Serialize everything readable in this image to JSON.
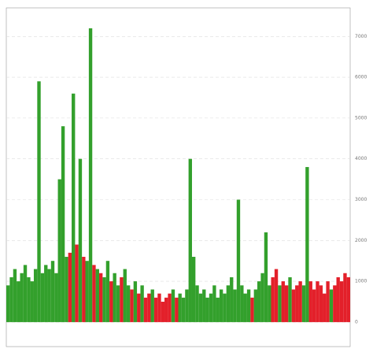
{
  "chart_data": {
    "type": "bar",
    "values": [
      900,
      1100,
      1300,
      1000,
      1200,
      1400,
      1100,
      1000,
      1300,
      5900,
      1200,
      1400,
      1300,
      1500,
      1200,
      3500,
      4800,
      1600,
      1700,
      5600,
      1900,
      4000,
      1600,
      1500,
      7200,
      1400,
      1300,
      1200,
      1100,
      1500,
      1000,
      1200,
      900,
      1100,
      1300,
      900,
      800,
      1000,
      700,
      900,
      600,
      700,
      800,
      600,
      700,
      500,
      600,
      700,
      800,
      600,
      700,
      600,
      800,
      4000,
      1600,
      900,
      700,
      800,
      600,
      700,
      900,
      600,
      800,
      700,
      900,
      1100,
      800,
      3000,
      900,
      700,
      800,
      600,
      800,
      1000,
      1200,
      2200,
      900,
      1100,
      1300,
      900,
      1000,
      900,
      1100,
      800,
      900,
      1000,
      900,
      3800,
      1000,
      800,
      1000,
      900,
      700,
      1000,
      800,
      900,
      1100,
      1000,
      1200,
      1100
    ],
    "colors": [
      "#33a02c",
      "#33a02c",
      "#33a02c",
      "#33a02c",
      "#33a02c",
      "#33a02c",
      "#33a02c",
      "#33a02c",
      "#33a02c",
      "#33a02c",
      "#33a02c",
      "#33a02c",
      "#33a02c",
      "#33a02c",
      "#33a02c",
      "#33a02c",
      "#33a02c",
      "#33a02c",
      "#e3202a",
      "#33a02c",
      "#e3202a",
      "#33a02c",
      "#e3202a",
      "#33a02c",
      "#33a02c",
      "#e3202a",
      "#33a02c",
      "#e3202a",
      "#33a02c",
      "#33a02c",
      "#e3202a",
      "#33a02c",
      "#33a02c",
      "#e3202a",
      "#33a02c",
      "#33a02c",
      "#e3202a",
      "#33a02c",
      "#e3202a",
      "#33a02c",
      "#e3202a",
      "#e3202a",
      "#33a02c",
      "#e3202a",
      "#e3202a",
      "#e3202a",
      "#e3202a",
      "#e3202a",
      "#33a02c",
      "#e3202a",
      "#33a02c",
      "#33a02c",
      "#33a02c",
      "#33a02c",
      "#33a02c",
      "#33a02c",
      "#33a02c",
      "#33a02c",
      "#33a02c",
      "#33a02c",
      "#33a02c",
      "#33a02c",
      "#33a02c",
      "#33a02c",
      "#33a02c",
      "#33a02c",
      "#33a02c",
      "#33a02c",
      "#33a02c",
      "#33a02c",
      "#33a02c",
      "#e3202a",
      "#33a02c",
      "#33a02c",
      "#33a02c",
      "#33a02c",
      "#33a02c",
      "#e3202a",
      "#e3202a",
      "#33a02c",
      "#e3202a",
      "#e3202a",
      "#33a02c",
      "#e3202a",
      "#e3202a",
      "#e3202a",
      "#33a02c",
      "#33a02c",
      "#e3202a",
      "#e3202a",
      "#e3202a",
      "#e3202a",
      "#e3202a",
      "#e3202a",
      "#33a02c",
      "#e3202a",
      "#e3202a",
      "#e3202a",
      "#e3202a",
      "#e3202a"
    ],
    "ylim": [
      -600,
      7700
    ],
    "yticks": [
      0,
      1000,
      2000,
      3000,
      4000,
      5000,
      6000,
      7000
    ],
    "grid": true
  }
}
